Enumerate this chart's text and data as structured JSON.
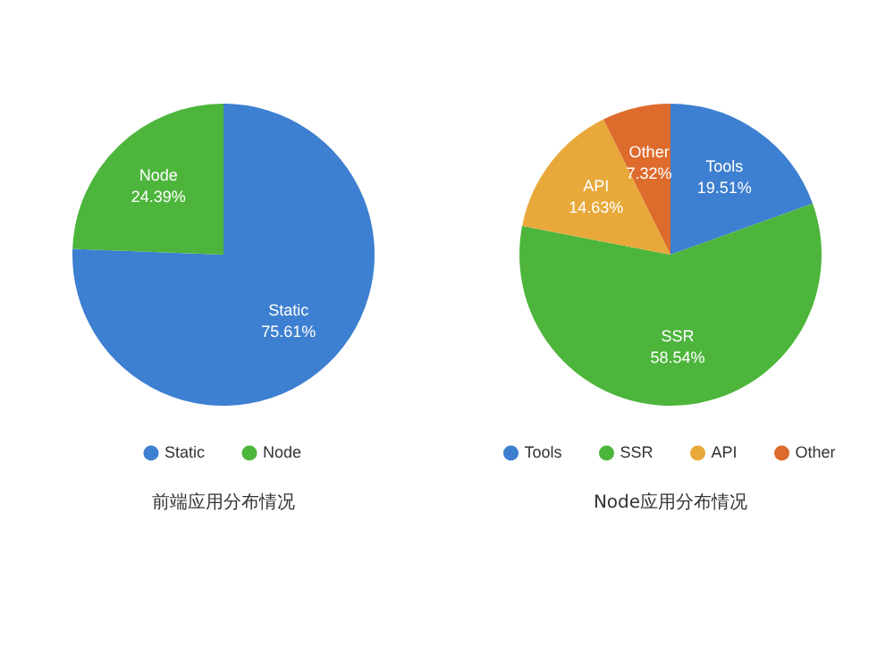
{
  "chart_data": [
    {
      "type": "pie",
      "title": "前端应用分布情况",
      "categories": [
        "Static",
        "Node"
      ],
      "values": [
        75.61,
        24.39
      ],
      "colors": [
        "#3d7fd0",
        "#4db53c"
      ],
      "value_labels": [
        "75.61%",
        "24.39%"
      ],
      "legend": "bottom"
    },
    {
      "type": "pie",
      "title": "Node应用分布情况",
      "categories": [
        "Tools",
        "SSR",
        "API",
        "Other"
      ],
      "values": [
        19.51,
        58.54,
        14.63,
        7.32
      ],
      "colors": [
        "#3d7fd0",
        "#4db53c",
        "#e8a93a",
        "#dd6b2c"
      ],
      "value_labels": [
        "19.51%",
        "58.54%",
        "14.63%",
        "7.32%"
      ],
      "legend": "bottom"
    }
  ]
}
